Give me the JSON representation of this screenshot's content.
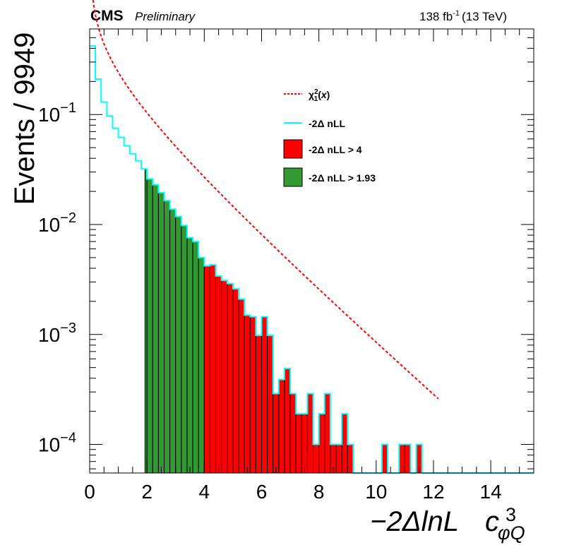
{
  "header": {
    "experiment": "CMS",
    "status": "Preliminary",
    "lumi": "138 fb",
    "lumi_exp": "-1",
    "energy": "(13 TeV)"
  },
  "chart_data": {
    "type": "histogram",
    "ylabel": "Events / 9949",
    "xlabel_main": "−2ΔlnL",
    "xlabel_param": "c",
    "xlabel_param_sub": "φQ",
    "xlabel_param_sup": "3",
    "xlim": [
      0,
      15.5
    ],
    "ylim": [
      5.5e-05,
      0.6
    ],
    "yscale": "log",
    "x_ticks": [
      "0",
      "2",
      "4",
      "6",
      "8",
      "10",
      "12",
      "14"
    ],
    "y_ticks": [
      {
        "base": "10",
        "exp": "−1",
        "value": 0.1
      },
      {
        "base": "10",
        "exp": "−2",
        "value": 0.01
      },
      {
        "base": "10",
        "exp": "−3",
        "value": 0.001
      },
      {
        "base": "10",
        "exp": "−4",
        "value": 0.0001
      }
    ],
    "bin_width": 0.2,
    "colors": {
      "chi2": "#ff0000",
      "nll": "#00ffff",
      "gt4": "#ff0000",
      "gt193": "#339933",
      "frame": "#000000"
    },
    "legend": {
      "position": "top-right",
      "entries": [
        {
          "key": "chi2",
          "label": "χ²₁(x)",
          "style": "dashed-line"
        },
        {
          "key": "nll",
          "label": "-2Δ nLL",
          "style": "line"
        },
        {
          "key": "gt4",
          "label": "-2Δ nLL > 4",
          "style": "fill"
        },
        {
          "key": "gt193",
          "label": "-2Δ nLL > 1.93",
          "style": "fill"
        }
      ]
    },
    "nll_hist": [
      0.42,
      0.21,
      0.13,
      0.097,
      0.075,
      0.062,
      0.052,
      0.044,
      0.038,
      0.032,
      0.026,
      0.023,
      0.0195,
      0.0165,
      0.0138,
      0.0118,
      0.0098,
      0.0076,
      0.007,
      0.005,
      0.0042,
      0.0043,
      0.0034,
      0.0031,
      0.0029,
      0.0026,
      0.0021,
      0.0015,
      0.00145,
      0.00098,
      0.00145,
      0.00098,
      0.00029,
      0.00039,
      0.00049,
      0.00029,
      0.00019,
      0.00019,
      0.00029,
      0.0001,
      0.00019,
      0.00029,
      0.0001,
      0.0001,
      0.00019,
      0.0001,
      0,
      0,
      0,
      0,
      0,
      0.0001,
      0,
      0,
      0.0001,
      0.0001,
      0,
      0.0001,
      0,
      0,
      0,
      0,
      0,
      0,
      0,
      0,
      0,
      0,
      0,
      0,
      0,
      0,
      0,
      0,
      0,
      0,
      0,
      0
    ],
    "gt193_range": [
      1.93,
      4.0
    ],
    "gt4_range": [
      4.0,
      15.6
    ],
    "chi2_x": [
      0.02,
      0.1,
      0.2,
      0.3,
      0.5,
      0.75,
      1.0,
      1.5,
      2.0,
      3.0,
      4.0,
      5.0,
      6.0,
      7.0,
      8.0,
      9.0,
      10.0,
      11.0,
      11.6,
      12.0
    ]
  }
}
